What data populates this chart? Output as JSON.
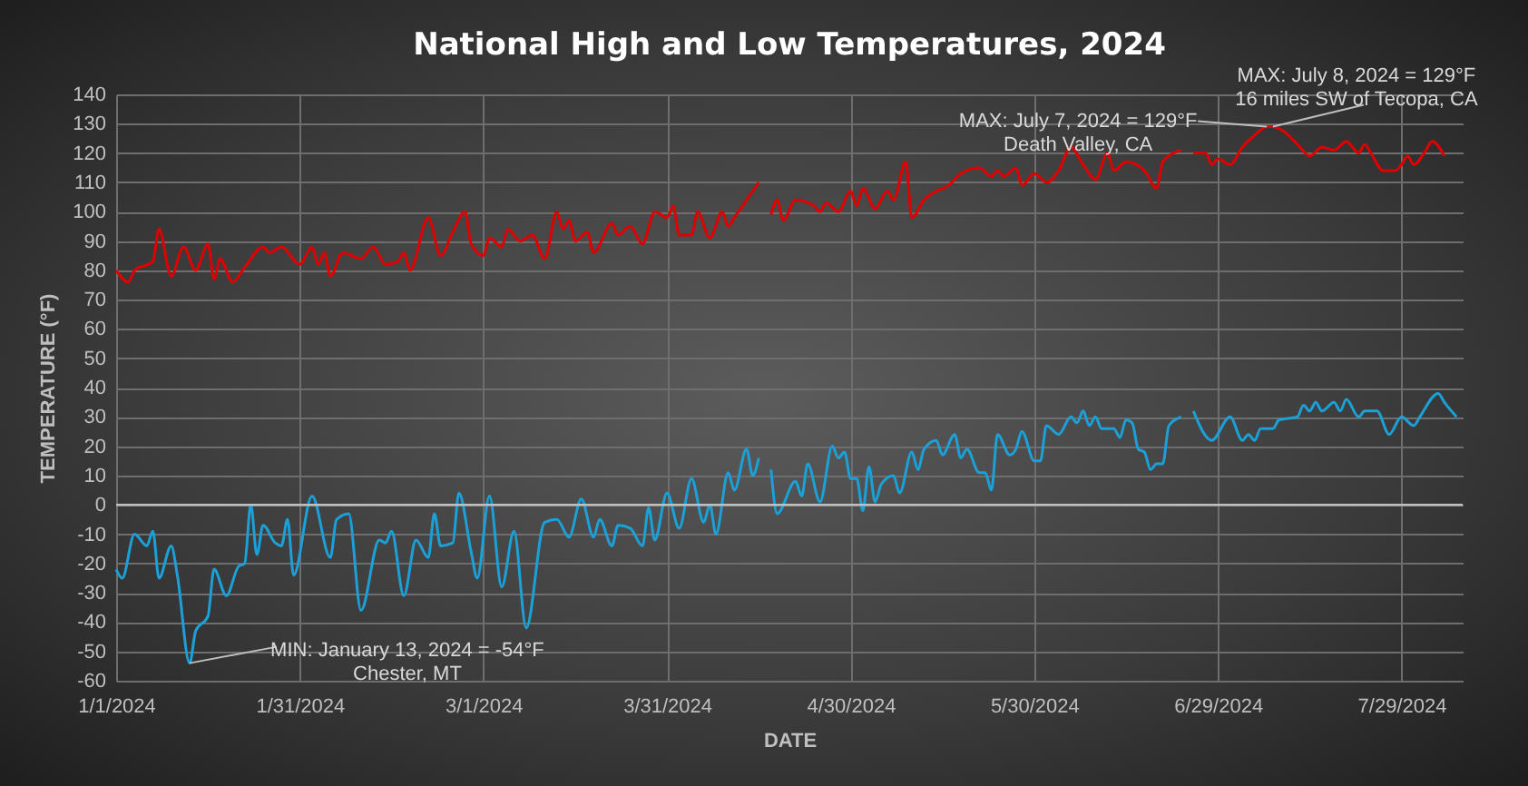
{
  "chart_data": {
    "type": "line",
    "title": "National High and Low Temperatures, 2024",
    "xlabel": "DATE",
    "ylabel": "TEMPERATURE (°F)",
    "xlim": [
      "2024-01-01",
      "2024-08-08"
    ],
    "xticks": [
      {
        "value": "2024-01-01",
        "label": "1/1/2024"
      },
      {
        "value": "2024-01-31",
        "label": "1/31/2024"
      },
      {
        "value": "2024-03-01",
        "label": "3/1/2024"
      },
      {
        "value": "2024-03-31",
        "label": "3/31/2024"
      },
      {
        "value": "2024-04-30",
        "label": "4/30/2024"
      },
      {
        "value": "2024-05-30",
        "label": "5/30/2024"
      },
      {
        "value": "2024-06-29",
        "label": "6/29/2024"
      },
      {
        "value": "2024-07-29",
        "label": "7/29/2024"
      }
    ],
    "ylim": [
      -60,
      140
    ],
    "yticks": [
      -60,
      -50,
      -40,
      -30,
      -20,
      -10,
      0,
      10,
      20,
      30,
      40,
      50,
      60,
      70,
      80,
      90,
      100,
      110,
      120,
      130,
      140
    ],
    "grid": true,
    "line_style": "solid",
    "ref_lines": [
      {
        "axis": "y",
        "value": 0,
        "color": "#bfbfbf"
      }
    ],
    "annotations": [
      {
        "text": "MIN: January 13, 2024 = -54°F\nChester, MT",
        "x": "2024-01-13",
        "y": -54
      },
      {
        "text": "MAX: July 7, 2024 = 129°F\nDeath Valley, CA",
        "x": "2024-07-07",
        "y": 129
      },
      {
        "text": "MAX: July 8, 2024 = 129°F\n16 miles SW of Tecopa, CA",
        "x": "2024-07-08",
        "y": 129
      }
    ],
    "series": [
      {
        "color": "#e00000",
        "x": [
          "2024-01-01",
          "2024-01-03",
          "2024-01-04",
          "2024-01-07",
          "2024-01-08",
          "2024-01-10",
          "2024-01-12",
          "2024-01-14",
          "2024-01-16",
          "2024-01-17",
          "2024-01-18",
          "2024-01-20",
          "2024-01-22",
          "2024-01-25",
          "2024-01-26",
          "2024-01-28",
          "2024-01-31",
          "2024-02-02",
          "2024-02-03",
          "2024-02-04",
          "2024-02-05",
          "2024-02-07",
          "2024-02-10",
          "2024-02-12",
          "2024-02-14",
          "2024-02-16",
          "2024-02-17",
          "2024-02-18",
          "2024-02-21",
          "2024-02-23",
          "2024-02-25",
          "2024-02-27",
          "2024-02-28",
          "2024-03-01",
          "2024-03-02",
          "2024-03-04",
          "2024-03-05",
          "2024-03-07",
          "2024-03-09",
          "2024-03-11",
          "2024-03-13",
          "2024-03-14",
          "2024-03-15",
          "2024-03-16",
          "2024-03-18",
          "2024-03-19",
          "2024-03-22",
          "2024-03-23",
          "2024-03-25",
          "2024-03-27",
          "2024-03-29",
          "2024-03-31",
          "2024-04-01",
          "2024-04-02",
          "2024-04-04",
          "2024-04-05",
          "2024-04-07",
          "2024-04-09",
          "2024-04-10",
          "2024-04-11",
          "2024-04-13",
          "2024-04-15",
          "2024-04-16",
          "2024-04-17",
          "2024-04-18",
          "2024-04-19",
          "2024-04-21",
          "2024-04-24",
          "2024-04-25",
          "2024-04-26",
          "2024-04-28",
          "2024-04-30",
          "2024-05-01",
          "2024-05-02",
          "2024-05-04",
          "2024-05-06",
          "2024-05-07",
          "2024-05-09",
          "2024-05-10",
          "2024-05-12",
          "2024-05-14",
          "2024-05-16",
          "2024-05-18",
          "2024-05-21",
          "2024-05-23",
          "2024-05-24",
          "2024-05-25",
          "2024-05-27",
          "2024-05-28",
          "2024-05-30",
          "2024-06-01",
          "2024-06-03",
          "2024-06-05",
          "2024-06-07",
          "2024-06-09",
          "2024-06-11",
          "2024-06-12",
          "2024-06-14",
          "2024-06-17",
          "2024-06-19",
          "2024-06-20",
          "2024-06-23",
          "2024-06-24",
          "2024-06-25",
          "2024-06-27",
          "2024-06-28",
          "2024-06-29",
          "2024-07-01",
          "2024-07-03",
          "2024-07-05",
          "2024-07-07",
          "2024-07-08",
          "2024-07-10",
          "2024-07-12",
          "2024-07-14",
          "2024-07-16",
          "2024-07-18",
          "2024-07-20",
          "2024-07-21",
          "2024-07-22",
          "2024-07-23",
          "2024-07-24",
          "2024-07-26",
          "2024-07-28",
          "2024-07-29",
          "2024-07-30",
          "2024-07-31",
          "2024-08-02",
          "2024-08-03",
          "2024-08-05"
        ],
        "values": [
          80,
          76,
          80,
          83,
          94,
          78,
          88,
          80,
          89,
          77,
          84,
          76,
          81,
          88,
          86,
          88,
          82,
          88,
          82,
          86,
          78,
          86,
          84,
          88,
          82,
          83,
          86,
          80,
          98,
          85,
          93,
          100,
          89,
          85,
          91,
          88,
          94,
          90,
          92,
          84,
          100,
          94,
          97,
          90,
          93,
          86,
          96,
          92,
          95,
          89,
          100,
          98,
          102,
          92,
          92,
          100,
          91,
          100,
          95,
          98,
          104,
          110,
          null,
          99,
          104,
          97,
          104,
          102,
          100,
          103,
          100,
          107,
          102,
          108,
          101,
          107,
          104,
          117,
          98,
          104,
          107,
          109,
          113,
          115,
          112,
          114,
          112,
          115,
          109,
          113,
          110,
          114,
          122,
          116,
          111,
          120,
          114,
          117,
          114,
          108,
          117,
          121,
          null,
          120,
          120,
          116,
          118,
          116,
          122,
          126,
          129,
          129,
          127,
          123,
          119,
          122,
          121,
          124,
          122,
          120,
          123,
          120,
          114,
          114,
          116,
          119,
          116,
          121,
          124,
          119
        ]
      },
      {
        "color": "#1ba1d8",
        "x": [
          "2024-01-01",
          "2024-01-02",
          "2024-01-04",
          "2024-01-06",
          "2024-01-07",
          "2024-01-08",
          "2024-01-10",
          "2024-01-11",
          "2024-01-13",
          "2024-01-14",
          "2024-01-16",
          "2024-01-17",
          "2024-01-19",
          "2024-01-21",
          "2024-01-22",
          "2024-01-23",
          "2024-01-24",
          "2024-01-25",
          "2024-01-27",
          "2024-01-28",
          "2024-01-29",
          "2024-01-30",
          "2024-02-02",
          "2024-02-05",
          "2024-02-06",
          "2024-02-08",
          "2024-02-10",
          "2024-02-13",
          "2024-02-14",
          "2024-02-15",
          "2024-02-17",
          "2024-02-19",
          "2024-02-21",
          "2024-02-22",
          "2024-02-23",
          "2024-02-25",
          "2024-02-26",
          "2024-02-28",
          "2024-02-29",
          "2024-03-02",
          "2024-03-04",
          "2024-03-06",
          "2024-03-08",
          "2024-03-11",
          "2024-03-13",
          "2024-03-15",
          "2024-03-17",
          "2024-03-19",
          "2024-03-20",
          "2024-03-22",
          "2024-03-23",
          "2024-03-25",
          "2024-03-27",
          "2024-03-28",
          "2024-03-29",
          "2024-03-31",
          "2024-04-02",
          "2024-04-04",
          "2024-04-06",
          "2024-04-07",
          "2024-04-08",
          "2024-04-10",
          "2024-04-11",
          "2024-04-13",
          "2024-04-14",
          "2024-04-15",
          "2024-04-16",
          "2024-04-17",
          "2024-04-18",
          "2024-04-21",
          "2024-04-22",
          "2024-04-23",
          "2024-04-25",
          "2024-04-27",
          "2024-04-28",
          "2024-04-29",
          "2024-04-30",
          "2024-05-01",
          "2024-05-02",
          "2024-05-03",
          "2024-05-04",
          "2024-05-05",
          "2024-05-07",
          "2024-05-08",
          "2024-05-10",
          "2024-05-11",
          "2024-05-12",
          "2024-05-14",
          "2024-05-15",
          "2024-05-17",
          "2024-05-18",
          "2024-05-19",
          "2024-05-21",
          "2024-05-22",
          "2024-05-23",
          "2024-05-24",
          "2024-05-26",
          "2024-05-27",
          "2024-05-28",
          "2024-05-30",
          "2024-05-31",
          "2024-06-01",
          "2024-06-03",
          "2024-06-05",
          "2024-06-06",
          "2024-06-07",
          "2024-06-08",
          "2024-06-09",
          "2024-06-10",
          "2024-06-12",
          "2024-06-13",
          "2024-06-14",
          "2024-06-15",
          "2024-06-16",
          "2024-06-17",
          "2024-06-18",
          "2024-06-19",
          "2024-06-20",
          "2024-06-21",
          "2024-06-23",
          "2024-06-24",
          "2024-06-25",
          "2024-06-28",
          "2024-07-01",
          "2024-07-03",
          "2024-07-04",
          "2024-07-05",
          "2024-07-06",
          "2024-07-08",
          "2024-07-09",
          "2024-07-12",
          "2024-07-13",
          "2024-07-14",
          "2024-07-15",
          "2024-07-16",
          "2024-07-18",
          "2024-07-19",
          "2024-07-20",
          "2024-07-22",
          "2024-07-23",
          "2024-07-25",
          "2024-07-27",
          "2024-07-29",
          "2024-07-31",
          "2024-08-01",
          "2024-08-04",
          "2024-08-05",
          "2024-08-07"
        ],
        "values": [
          -22,
          -25,
          -10,
          -14,
          -9,
          -25,
          -14,
          -24,
          -54,
          -43,
          -38,
          -22,
          -31,
          -21,
          -20,
          0,
          -17,
          -7,
          -13,
          -14,
          -5,
          -24,
          3,
          -18,
          -5,
          -3,
          -36,
          -12,
          -13,
          -9,
          -31,
          -12,
          -18,
          -3,
          -14,
          -13,
          4,
          -16,
          -25,
          3,
          -28,
          -9,
          -42,
          -6,
          -5,
          -11,
          2,
          -11,
          -5,
          -14,
          -7,
          -8,
          -14,
          -1,
          -12,
          4,
          -8,
          9,
          -6,
          0,
          -10,
          11,
          5,
          19,
          10,
          16,
          null,
          12,
          -3,
          8,
          3,
          14,
          1,
          20,
          16,
          18,
          9,
          9,
          -2,
          13,
          1,
          7,
          10,
          4,
          18,
          12,
          19,
          22,
          17,
          24,
          16,
          19,
          11,
          11,
          5,
          24,
          17,
          19,
          25,
          15,
          15,
          27,
          24,
          30,
          28,
          32,
          27,
          30,
          26,
          26,
          23,
          29,
          28,
          19,
          18,
          12,
          14,
          14,
          27,
          30,
          null,
          32,
          22,
          30,
          22,
          24,
          22,
          26,
          26,
          29,
          30,
          34,
          32,
          35,
          32,
          35,
          32,
          36,
          30,
          32,
          32,
          24,
          30,
          27,
          30,
          38,
          35,
          30
        ]
      }
    ]
  }
}
